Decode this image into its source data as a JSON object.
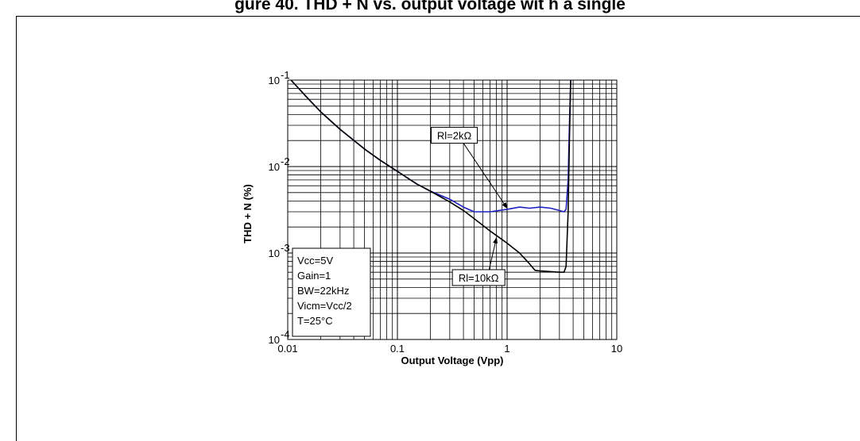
{
  "page": {
    "title": "gure 40. THD + N vs. output voltage wit h a single"
  },
  "chart_data": {
    "type": "line",
    "xlabel": "Output Voltage (Vpp)",
    "ylabel": "THD + N (%)",
    "xscale": "log",
    "yscale": "log",
    "xlim": [
      0.01,
      10
    ],
    "ylim": [
      0.0001,
      0.1
    ],
    "grid": true,
    "x_ticks": [
      {
        "value": 0.01,
        "label": "0.01"
      },
      {
        "value": 0.1,
        "label": "0.1"
      },
      {
        "value": 1,
        "label": "1"
      },
      {
        "value": 10,
        "label": "10"
      }
    ],
    "y_ticks": [
      {
        "value": 0.1,
        "base": "10",
        "exp": "-1"
      },
      {
        "value": 0.01,
        "base": "10",
        "exp": "-2"
      },
      {
        "value": 0.001,
        "base": "10",
        "exp": "-3"
      },
      {
        "value": 0.0001,
        "base": "10",
        "exp": "-4"
      }
    ],
    "series": [
      {
        "name": "Rl=2kΩ",
        "color": "#1f1fbf",
        "points": [
          [
            0.0107,
            0.1
          ],
          [
            0.015,
            0.063
          ],
          [
            0.02,
            0.043
          ],
          [
            0.03,
            0.027
          ],
          [
            0.05,
            0.016
          ],
          [
            0.07,
            0.0118
          ],
          [
            0.1,
            0.0088
          ],
          [
            0.15,
            0.0063
          ],
          [
            0.2,
            0.0052
          ],
          [
            0.3,
            0.0042
          ],
          [
            0.4,
            0.0034
          ],
          [
            0.5,
            0.003
          ],
          [
            0.7,
            0.003
          ],
          [
            1.0,
            0.0032
          ],
          [
            1.3,
            0.0034
          ],
          [
            1.6,
            0.0033
          ],
          [
            2.0,
            0.0034
          ],
          [
            2.5,
            0.0033
          ],
          [
            3.0,
            0.0031
          ],
          [
            3.3,
            0.003
          ],
          [
            3.45,
            0.0032
          ],
          [
            3.6,
            0.007
          ],
          [
            3.7,
            0.03
          ],
          [
            3.8,
            0.1
          ]
        ]
      },
      {
        "name": "Rl=10kΩ",
        "color": "#000000",
        "points": [
          [
            0.0107,
            0.1
          ],
          [
            0.015,
            0.063
          ],
          [
            0.02,
            0.043
          ],
          [
            0.03,
            0.027
          ],
          [
            0.05,
            0.016
          ],
          [
            0.07,
            0.0118
          ],
          [
            0.1,
            0.0088
          ],
          [
            0.15,
            0.0063
          ],
          [
            0.2,
            0.0052
          ],
          [
            0.3,
            0.0039
          ],
          [
            0.4,
            0.0031
          ],
          [
            0.5,
            0.0025
          ],
          [
            0.7,
            0.0018
          ],
          [
            1.0,
            0.0013
          ],
          [
            1.3,
            0.001
          ],
          [
            1.6,
            0.00075
          ],
          [
            1.8,
            0.00063
          ],
          [
            2.0,
            0.00062
          ],
          [
            2.5,
            0.00061
          ],
          [
            3.0,
            0.0006
          ],
          [
            3.3,
            0.0006
          ],
          [
            3.45,
            0.0007
          ],
          [
            3.6,
            0.003
          ],
          [
            3.7,
            0.02
          ],
          [
            3.8,
            0.1
          ]
        ]
      }
    ],
    "annotations": [
      {
        "text": "Rl=2kΩ",
        "label_at": [
          0.33,
          0.023
        ],
        "arrow_to": [
          1.0,
          0.0033
        ]
      },
      {
        "text": "Rl=10kΩ",
        "label_at": [
          0.55,
          0.00052
        ],
        "arrow_to": [
          0.8,
          0.0015
        ]
      }
    ],
    "conditions_box": {
      "lines": [
        "Vcc=5V",
        "Gain=1",
        "BW=22kHz",
        "Vicm=Vcc/2",
        "T=25°C"
      ]
    }
  }
}
